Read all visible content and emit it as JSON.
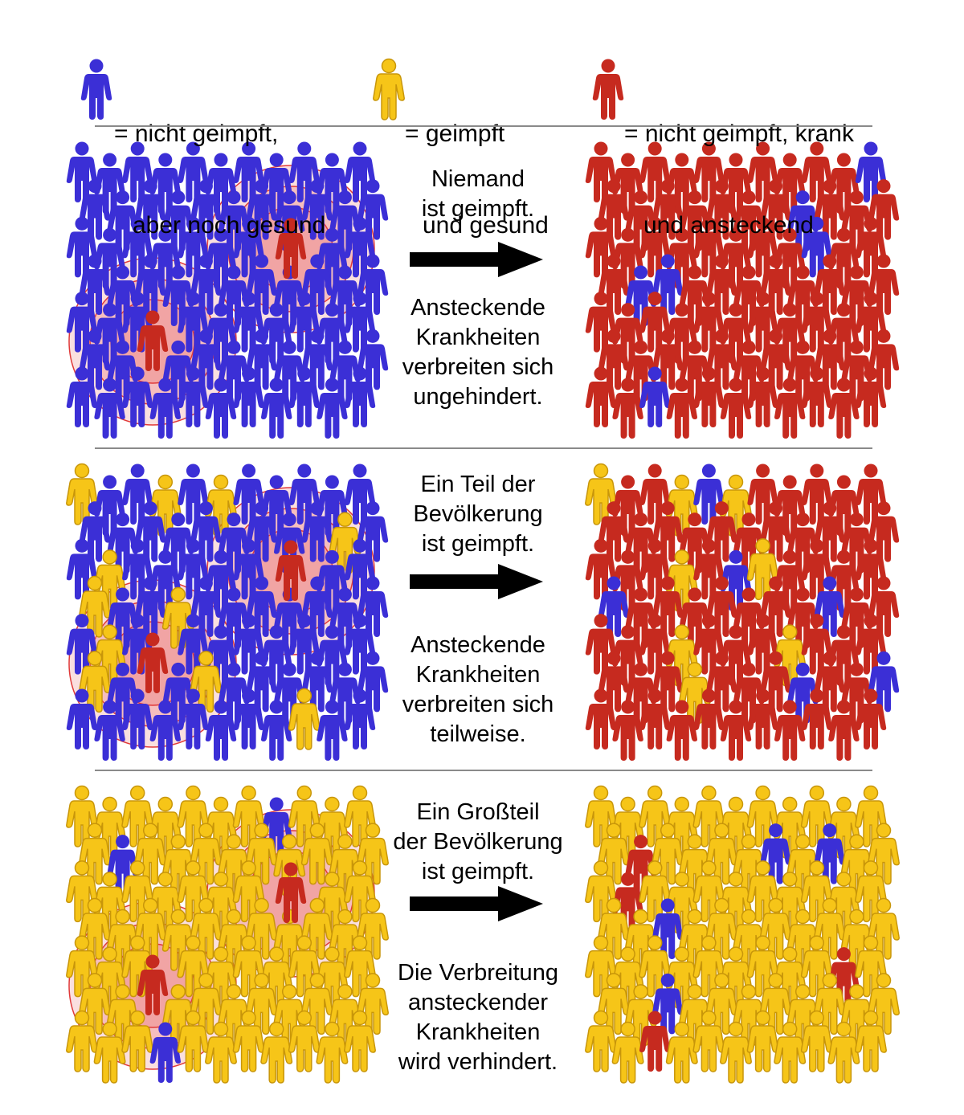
{
  "colors": {
    "unvaccinated": "#3b2fd6",
    "vaccinated": "#f6c518",
    "sick": "#c62a1f",
    "ring": "#e03a3a",
    "divider": "#8a8a8a"
  },
  "icon_name": "person-icon",
  "legend": [
    {
      "kind": "unvaccinated",
      "line1": "= nicht geimpft,",
      "line2": "aber noch gesund"
    },
    {
      "kind": "vaccinated",
      "line1": "= geimpft",
      "line2": "und gesund"
    },
    {
      "kind": "sick",
      "line1": "= nicht geimpft, krank",
      "line2": "und ansteckend"
    }
  ],
  "scenarios": [
    {
      "top_text": "Niemand\nist geimpft.",
      "bottom_text": "Ansteckende\nKrankheiten\nverbreiten sich\nungehindert.",
      "before_vaccinated_share": 0,
      "after": {
        "unvaccinated_healthy": 6,
        "vaccinated": 0
      }
    },
    {
      "top_text": "Ein Teil der\nBevölkerung\nist geimpft.",
      "bottom_text": "Ansteckende\nKrankheiten\nverbreiten sich\nteilweise.",
      "before_vaccinated_share": 0.13,
      "after": {
        "unvaccinated_healthy": 6,
        "vaccinated": 8
      }
    },
    {
      "top_text": "Ein Großteil\nder Bevölkerung\nist geimpft.",
      "bottom_text": "Die Verbreitung\nansteckender\nKrankheiten\nwird verhindert.",
      "before_vaccinated_share": 0.94,
      "after": {
        "unvaccinated_healthy": 4,
        "sick": 4
      }
    }
  ]
}
